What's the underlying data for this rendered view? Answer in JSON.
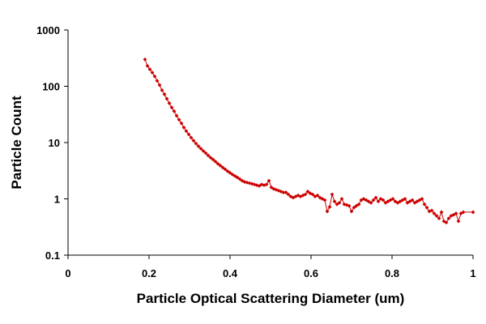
{
  "chart_data": {
    "type": "line",
    "title": "",
    "xlabel": "Particle Optical Scattering Diameter (um)",
    "ylabel": "Particle Count",
    "xlim": [
      0,
      1
    ],
    "ylim": [
      0.1,
      1000
    ],
    "y_scale": "log",
    "x_ticks": [
      "0",
      "0.2",
      "0.4",
      "0.6",
      "0.8",
      "1"
    ],
    "y_ticks": [
      "0.1",
      "1",
      "10",
      "100",
      "1000"
    ],
    "grid": false,
    "legend": "none",
    "series": [
      {
        "color": "#cc0000",
        "marker": "diamond",
        "x": [
          0.19,
          0.196,
          0.202,
          0.208,
          0.214,
          0.22,
          0.226,
          0.232,
          0.238,
          0.244,
          0.25,
          0.256,
          0.262,
          0.268,
          0.274,
          0.28,
          0.286,
          0.292,
          0.298,
          0.304,
          0.31,
          0.316,
          0.322,
          0.328,
          0.334,
          0.34,
          0.346,
          0.352,
          0.358,
          0.364,
          0.37,
          0.376,
          0.382,
          0.388,
          0.394,
          0.4,
          0.406,
          0.412,
          0.418,
          0.424,
          0.43,
          0.436,
          0.442,
          0.448,
          0.454,
          0.46,
          0.466,
          0.472,
          0.478,
          0.484,
          0.49,
          0.496,
          0.502,
          0.508,
          0.514,
          0.52,
          0.526,
          0.532,
          0.538,
          0.544,
          0.55,
          0.556,
          0.562,
          0.568,
          0.574,
          0.58,
          0.586,
          0.592,
          0.598,
          0.604,
          0.61,
          0.616,
          0.622,
          0.628,
          0.634,
          0.64,
          0.646,
          0.652,
          0.658,
          0.664,
          0.67,
          0.676,
          0.682,
          0.688,
          0.694,
          0.7,
          0.706,
          0.712,
          0.718,
          0.724,
          0.73,
          0.736,
          0.742,
          0.748,
          0.754,
          0.76,
          0.766,
          0.772,
          0.778,
          0.784,
          0.79,
          0.796,
          0.802,
          0.808,
          0.814,
          0.82,
          0.826,
          0.832,
          0.838,
          0.844,
          0.85,
          0.856,
          0.862,
          0.868,
          0.874,
          0.88,
          0.886,
          0.892,
          0.898,
          0.904,
          0.91,
          0.916,
          0.922,
          0.928,
          0.934,
          0.94,
          0.946,
          0.952,
          0.958,
          0.964,
          0.97,
          0.976,
          1.0
        ],
        "y": [
          300,
          230,
          200,
          175,
          150,
          125,
          105,
          85,
          72,
          60,
          50,
          42,
          36,
          30,
          25.5,
          22,
          18.5,
          16,
          14,
          12.2,
          10.8,
          9.6,
          8.6,
          7.8,
          7.1,
          6.5,
          5.9,
          5.4,
          5.0,
          4.6,
          4.2,
          3.9,
          3.6,
          3.35,
          3.1,
          2.9,
          2.7,
          2.55,
          2.4,
          2.25,
          2.1,
          2.0,
          1.95,
          1.9,
          1.85,
          1.8,
          1.75,
          1.7,
          1.8,
          1.75,
          1.8,
          2.1,
          1.6,
          1.5,
          1.45,
          1.4,
          1.35,
          1.3,
          1.3,
          1.2,
          1.1,
          1.05,
          1.1,
          1.15,
          1.1,
          1.15,
          1.2,
          1.35,
          1.25,
          1.2,
          1.1,
          1.15,
          1.05,
          1.0,
          0.95,
          0.6,
          0.72,
          1.2,
          0.9,
          0.8,
          0.85,
          1.0,
          0.8,
          0.78,
          0.75,
          0.6,
          0.7,
          0.75,
          0.8,
          0.95,
          1.0,
          0.95,
          0.9,
          0.85,
          0.95,
          1.05,
          0.9,
          1.0,
          0.95,
          0.85,
          0.9,
          0.95,
          1.0,
          0.9,
          0.85,
          0.9,
          0.95,
          1.0,
          0.85,
          0.9,
          0.95,
          0.85,
          0.9,
          0.95,
          1.0,
          0.8,
          0.7,
          0.6,
          0.62,
          0.55,
          0.5,
          0.45,
          0.58,
          0.4,
          0.38,
          0.45,
          0.5,
          0.52,
          0.55,
          0.4,
          0.55,
          0.58,
          0.58
        ]
      }
    ]
  }
}
